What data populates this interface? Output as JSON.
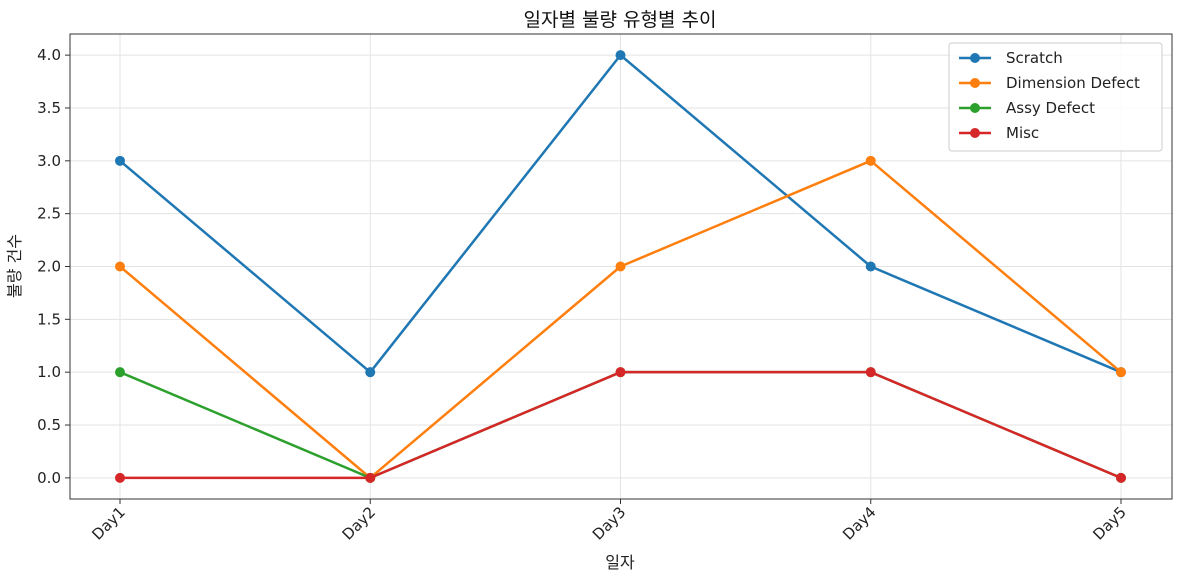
{
  "chart_data": {
    "type": "line",
    "title": "일자별 불량 유형별 추이",
    "xlabel": "일자",
    "ylabel": "불량 건수",
    "categories": [
      "Day1",
      "Day2",
      "Day3",
      "Day4",
      "Day5"
    ],
    "ylim": [
      -0.2,
      4.2
    ],
    "yticks": [
      "0.0",
      "0.5",
      "1.0",
      "1.5",
      "2.0",
      "2.5",
      "3.0",
      "3.5",
      "4.0"
    ],
    "grid": true,
    "legend_position": "top-right",
    "series": [
      {
        "name": "Scratch",
        "color": "#1f77b4",
        "values": [
          3,
          1,
          4,
          2,
          1
        ]
      },
      {
        "name": "Dimension Defect",
        "color": "#ff7f0e",
        "values": [
          2,
          0,
          2,
          3,
          1
        ]
      },
      {
        "name": "Assy Defect",
        "color": "#2ca02c",
        "values": [
          1,
          0,
          1,
          1,
          0
        ]
      },
      {
        "name": "Misc",
        "color": "#d62728",
        "values": [
          0,
          0,
          1,
          1,
          0
        ]
      }
    ]
  }
}
